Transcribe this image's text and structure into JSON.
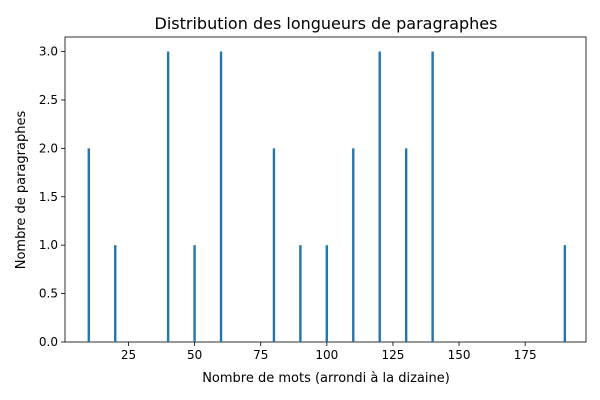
{
  "chart_data": {
    "type": "bar",
    "title": "Distribution des longueurs de paragraphes",
    "xlabel": "Nombre de mots (arrondi à la dizaine)",
    "ylabel": "Nombre de paragraphes",
    "x": [
      10,
      20,
      40,
      50,
      60,
      80,
      90,
      100,
      110,
      120,
      130,
      140,
      190
    ],
    "values": [
      2,
      1,
      3,
      1,
      3,
      2,
      1,
      1,
      2,
      3,
      2,
      3,
      1
    ],
    "xlim": [
      1,
      198
    ],
    "ylim": [
      0,
      3.15
    ],
    "xticks": [
      25,
      50,
      75,
      100,
      125,
      150,
      175
    ],
    "xtick_labels": [
      "25",
      "50",
      "75",
      "100",
      "125",
      "150",
      "175"
    ],
    "yticks": [
      0,
      0.5,
      1,
      1.5,
      2,
      2.5,
      3
    ],
    "ytick_labels": [
      "0.0",
      "0.5",
      "1.0",
      "1.5",
      "2.0",
      "2.5",
      "3.0"
    ],
    "bar_color": "#1f77b4",
    "grid": false,
    "legend": "none"
  }
}
